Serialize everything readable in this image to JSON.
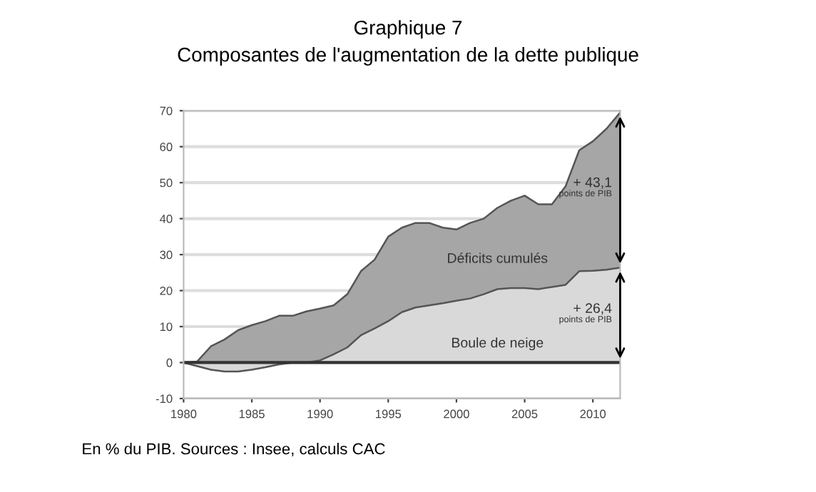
{
  "chart_data": {
    "type": "area",
    "title": "Graphique 7",
    "subtitle": "Composantes de l'augmentation de la dette publique",
    "x": [
      1980,
      1981,
      1982,
      1983,
      1984,
      1985,
      1986,
      1987,
      1988,
      1989,
      1990,
      1991,
      1992,
      1993,
      1994,
      1995,
      1996,
      1997,
      1998,
      1999,
      2000,
      2001,
      2002,
      2003,
      2004,
      2005,
      2006,
      2007,
      2008,
      2009,
      2010,
      2011,
      2012
    ],
    "series": [
      {
        "name": "Déficits cumulés",
        "color": "#a6a6a6",
        "values": [
          0,
          0.3,
          4.5,
          6.4,
          9,
          10.4,
          11.5,
          13,
          13,
          14.2,
          15,
          15.9,
          19,
          25.4,
          28.6,
          35,
          37.5,
          38.8,
          38.8,
          37.5,
          37,
          38.8,
          40,
          43,
          45,
          46.4,
          44,
          44,
          49,
          59,
          61.5,
          65,
          69.5
        ]
      },
      {
        "name": "Boule de neige",
        "color": "#d9d9d9",
        "values": [
          0,
          -1,
          -2,
          -2.5,
          -2.5,
          -2,
          -1.3,
          -0.5,
          0,
          0,
          0.6,
          2.3,
          4.2,
          7.6,
          9.5,
          11.5,
          14,
          15.3,
          15.9,
          16.5,
          17.2,
          17.8,
          19,
          20.4,
          20.7,
          20.7,
          20.4,
          21,
          21.6,
          25.4,
          25.5,
          25.8,
          26.4
        ]
      }
    ],
    "xlim": [
      1980,
      2012
    ],
    "ylim": [
      -10,
      70
    ],
    "xticks": [
      1980,
      1985,
      1990,
      1995,
      2000,
      2005,
      2010
    ],
    "yticks": [
      -10,
      0,
      10,
      20,
      30,
      40,
      50,
      60,
      70
    ],
    "grid": "y",
    "legend": false,
    "annotations": [
      {
        "text": "+ 43,1\npoints de PIB",
        "x": 2012,
        "y": 48
      },
      {
        "text": "+ 26,4\npoints de PIB",
        "x": 2012,
        "y": 13
      },
      "En % du PIB. Sources : Insee, calculs CAC"
    ]
  }
}
